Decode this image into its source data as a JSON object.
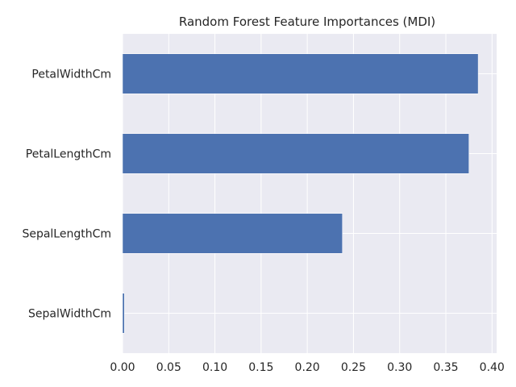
{
  "chart_data": {
    "type": "bar",
    "orientation": "horizontal",
    "title": "Random Forest Feature Importances (MDI)",
    "xlabel": "",
    "ylabel": "",
    "categories": [
      "SepalWidthCm",
      "SepalLengthCm",
      "PetalLengthCm",
      "PetalWidthCm"
    ],
    "values": [
      0.002,
      0.238,
      0.375,
      0.385
    ],
    "xlim": [
      0,
      0.405
    ],
    "xticks": [
      "0.00",
      "0.05",
      "0.10",
      "0.15",
      "0.20",
      "0.25",
      "0.30",
      "0.35",
      "0.40"
    ],
    "grid": true,
    "colors": {
      "bar": "#4c72b0",
      "plot_background": "#eaeaf2",
      "grid": "#ffffff"
    }
  }
}
